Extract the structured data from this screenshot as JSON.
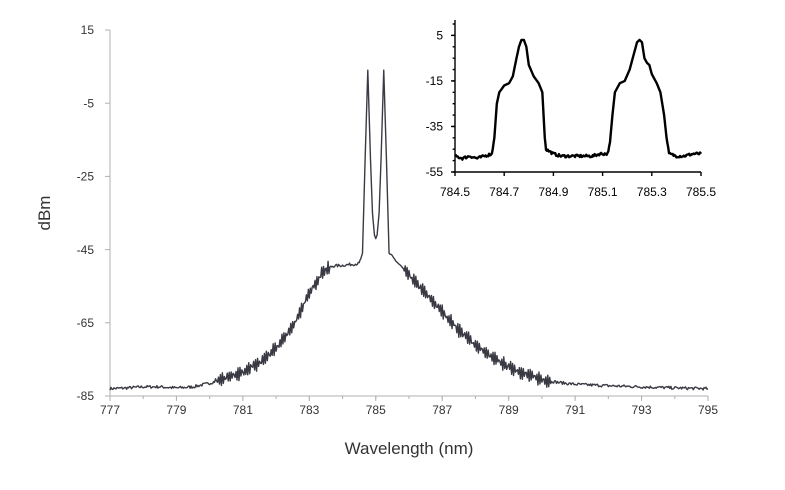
{
  "chart_data": [
    {
      "id": "main",
      "type": "line",
      "title": "",
      "xlabel": "Wavelength (nm)",
      "ylabel": "dBm",
      "xlim": [
        777,
        795
      ],
      "ylim": [
        -85,
        15
      ],
      "xticks": [
        777,
        779,
        781,
        783,
        785,
        787,
        789,
        791,
        793,
        795
      ],
      "yticks": [
        15,
        -5,
        -25,
        -45,
        -65,
        -85
      ],
      "grid": false,
      "legend": "none",
      "line_color": "#3a3a44",
      "series": [
        {
          "points": [
            [
              777.0,
              -83.0
            ],
            [
              777.5,
              -82.8
            ],
            [
              778.0,
              -82.5
            ],
            [
              778.5,
              -82.5
            ],
            [
              779.0,
              -82.8
            ],
            [
              779.5,
              -82.5
            ],
            [
              780.0,
              -81.5
            ],
            [
              780.5,
              -80.0
            ],
            [
              781.0,
              -78.5
            ],
            [
              781.5,
              -76.0
            ],
            [
              782.0,
              -72.0
            ],
            [
              782.5,
              -66.0
            ],
            [
              783.0,
              -57.0
            ],
            [
              783.4,
              -51.0
            ],
            [
              783.7,
              -49.5
            ],
            [
              784.0,
              -49.3
            ],
            [
              784.3,
              -49.0
            ],
            [
              784.5,
              -48.8
            ],
            [
              784.6,
              -46.0
            ],
            [
              784.68,
              -20.0
            ],
            [
              784.73,
              -5.0
            ],
            [
              784.76,
              4.0
            ],
            [
              784.79,
              -5.0
            ],
            [
              784.84,
              -20.0
            ],
            [
              784.9,
              -35.0
            ],
            [
              784.96,
              -41.0
            ],
            [
              785.0,
              -42.0
            ],
            [
              785.04,
              -41.0
            ],
            [
              785.1,
              -35.0
            ],
            [
              785.16,
              -20.0
            ],
            [
              785.21,
              -5.0
            ],
            [
              785.24,
              4.0
            ],
            [
              785.27,
              -5.0
            ],
            [
              785.32,
              -20.0
            ],
            [
              785.4,
              -46.0
            ],
            [
              785.6,
              -48.0
            ],
            [
              786.0,
              -52.0
            ],
            [
              786.5,
              -57.0
            ],
            [
              787.0,
              -62.0
            ],
            [
              787.5,
              -67.0
            ],
            [
              788.0,
              -71.0
            ],
            [
              788.5,
              -74.5
            ],
            [
              789.0,
              -77.0
            ],
            [
              789.5,
              -79.0
            ],
            [
              790.0,
              -80.5
            ],
            [
              790.5,
              -81.3
            ],
            [
              791.0,
              -81.8
            ],
            [
              792.0,
              -82.2
            ],
            [
              793.0,
              -82.5
            ],
            [
              794.0,
              -82.8
            ],
            [
              795.0,
              -83.0
            ]
          ]
        }
      ]
    },
    {
      "id": "inset",
      "type": "line",
      "title": "",
      "xlabel": "",
      "ylabel": "",
      "xlim": [
        784.5,
        785.5
      ],
      "ylim": [
        -55,
        10
      ],
      "xticks": [
        784.5,
        784.7,
        784.9,
        785.1,
        785.3,
        785.5
      ],
      "xtick_labels": [
        "784.5",
        "784.7",
        "784.9",
        "785.1",
        "785.3",
        "785.5"
      ],
      "yticks": [
        5,
        -15,
        -35,
        -55
      ],
      "grid": false,
      "legend": "none",
      "line_color": "#000000",
      "series": [
        {
          "points": [
            [
              784.5,
              -48.0
            ],
            [
              784.53,
              -49.0
            ],
            [
              784.56,
              -48.0
            ],
            [
              784.59,
              -49.0
            ],
            [
              784.62,
              -48.0
            ],
            [
              784.65,
              -47.0
            ],
            [
              784.66,
              -40.0
            ],
            [
              784.67,
              -25.0
            ],
            [
              784.68,
              -20.0
            ],
            [
              784.7,
              -17.0
            ],
            [
              784.72,
              -16.0
            ],
            [
              784.735,
              -13.0
            ],
            [
              784.75,
              -5.0
            ],
            [
              784.76,
              0.0
            ],
            [
              784.77,
              3.0
            ],
            [
              784.78,
              3.0
            ],
            [
              784.79,
              0.0
            ],
            [
              784.8,
              -8.0
            ],
            [
              784.82,
              -13.0
            ],
            [
              784.84,
              -16.0
            ],
            [
              784.855,
              -20.0
            ],
            [
              784.86,
              -30.0
            ],
            [
              784.865,
              -40.0
            ],
            [
              784.87,
              -45.0
            ],
            [
              784.9,
              -47.0
            ],
            [
              784.93,
              -48.0
            ],
            [
              784.96,
              -48.0
            ],
            [
              785.0,
              -48.0
            ],
            [
              785.03,
              -48.0
            ],
            [
              785.06,
              -48.0
            ],
            [
              785.09,
              -47.0
            ],
            [
              785.12,
              -47.0
            ],
            [
              785.13,
              -42.0
            ],
            [
              785.14,
              -30.0
            ],
            [
              785.15,
              -20.0
            ],
            [
              785.17,
              -16.0
            ],
            [
              785.19,
              -15.0
            ],
            [
              785.21,
              -10.0
            ],
            [
              785.23,
              -2.0
            ],
            [
              785.24,
              2.0
            ],
            [
              785.25,
              3.0
            ],
            [
              785.26,
              2.0
            ],
            [
              785.27,
              -5.0
            ],
            [
              785.28,
              -7.0
            ],
            [
              785.29,
              -8.0
            ],
            [
              785.3,
              -12.0
            ],
            [
              785.32,
              -16.0
            ],
            [
              785.335,
              -20.0
            ],
            [
              785.35,
              -30.0
            ],
            [
              785.36,
              -40.0
            ],
            [
              785.37,
              -47.0
            ],
            [
              785.4,
              -48.0
            ],
            [
              785.43,
              -48.0
            ],
            [
              785.47,
              -47.0
            ],
            [
              785.5,
              -47.0
            ]
          ]
        }
      ]
    }
  ]
}
